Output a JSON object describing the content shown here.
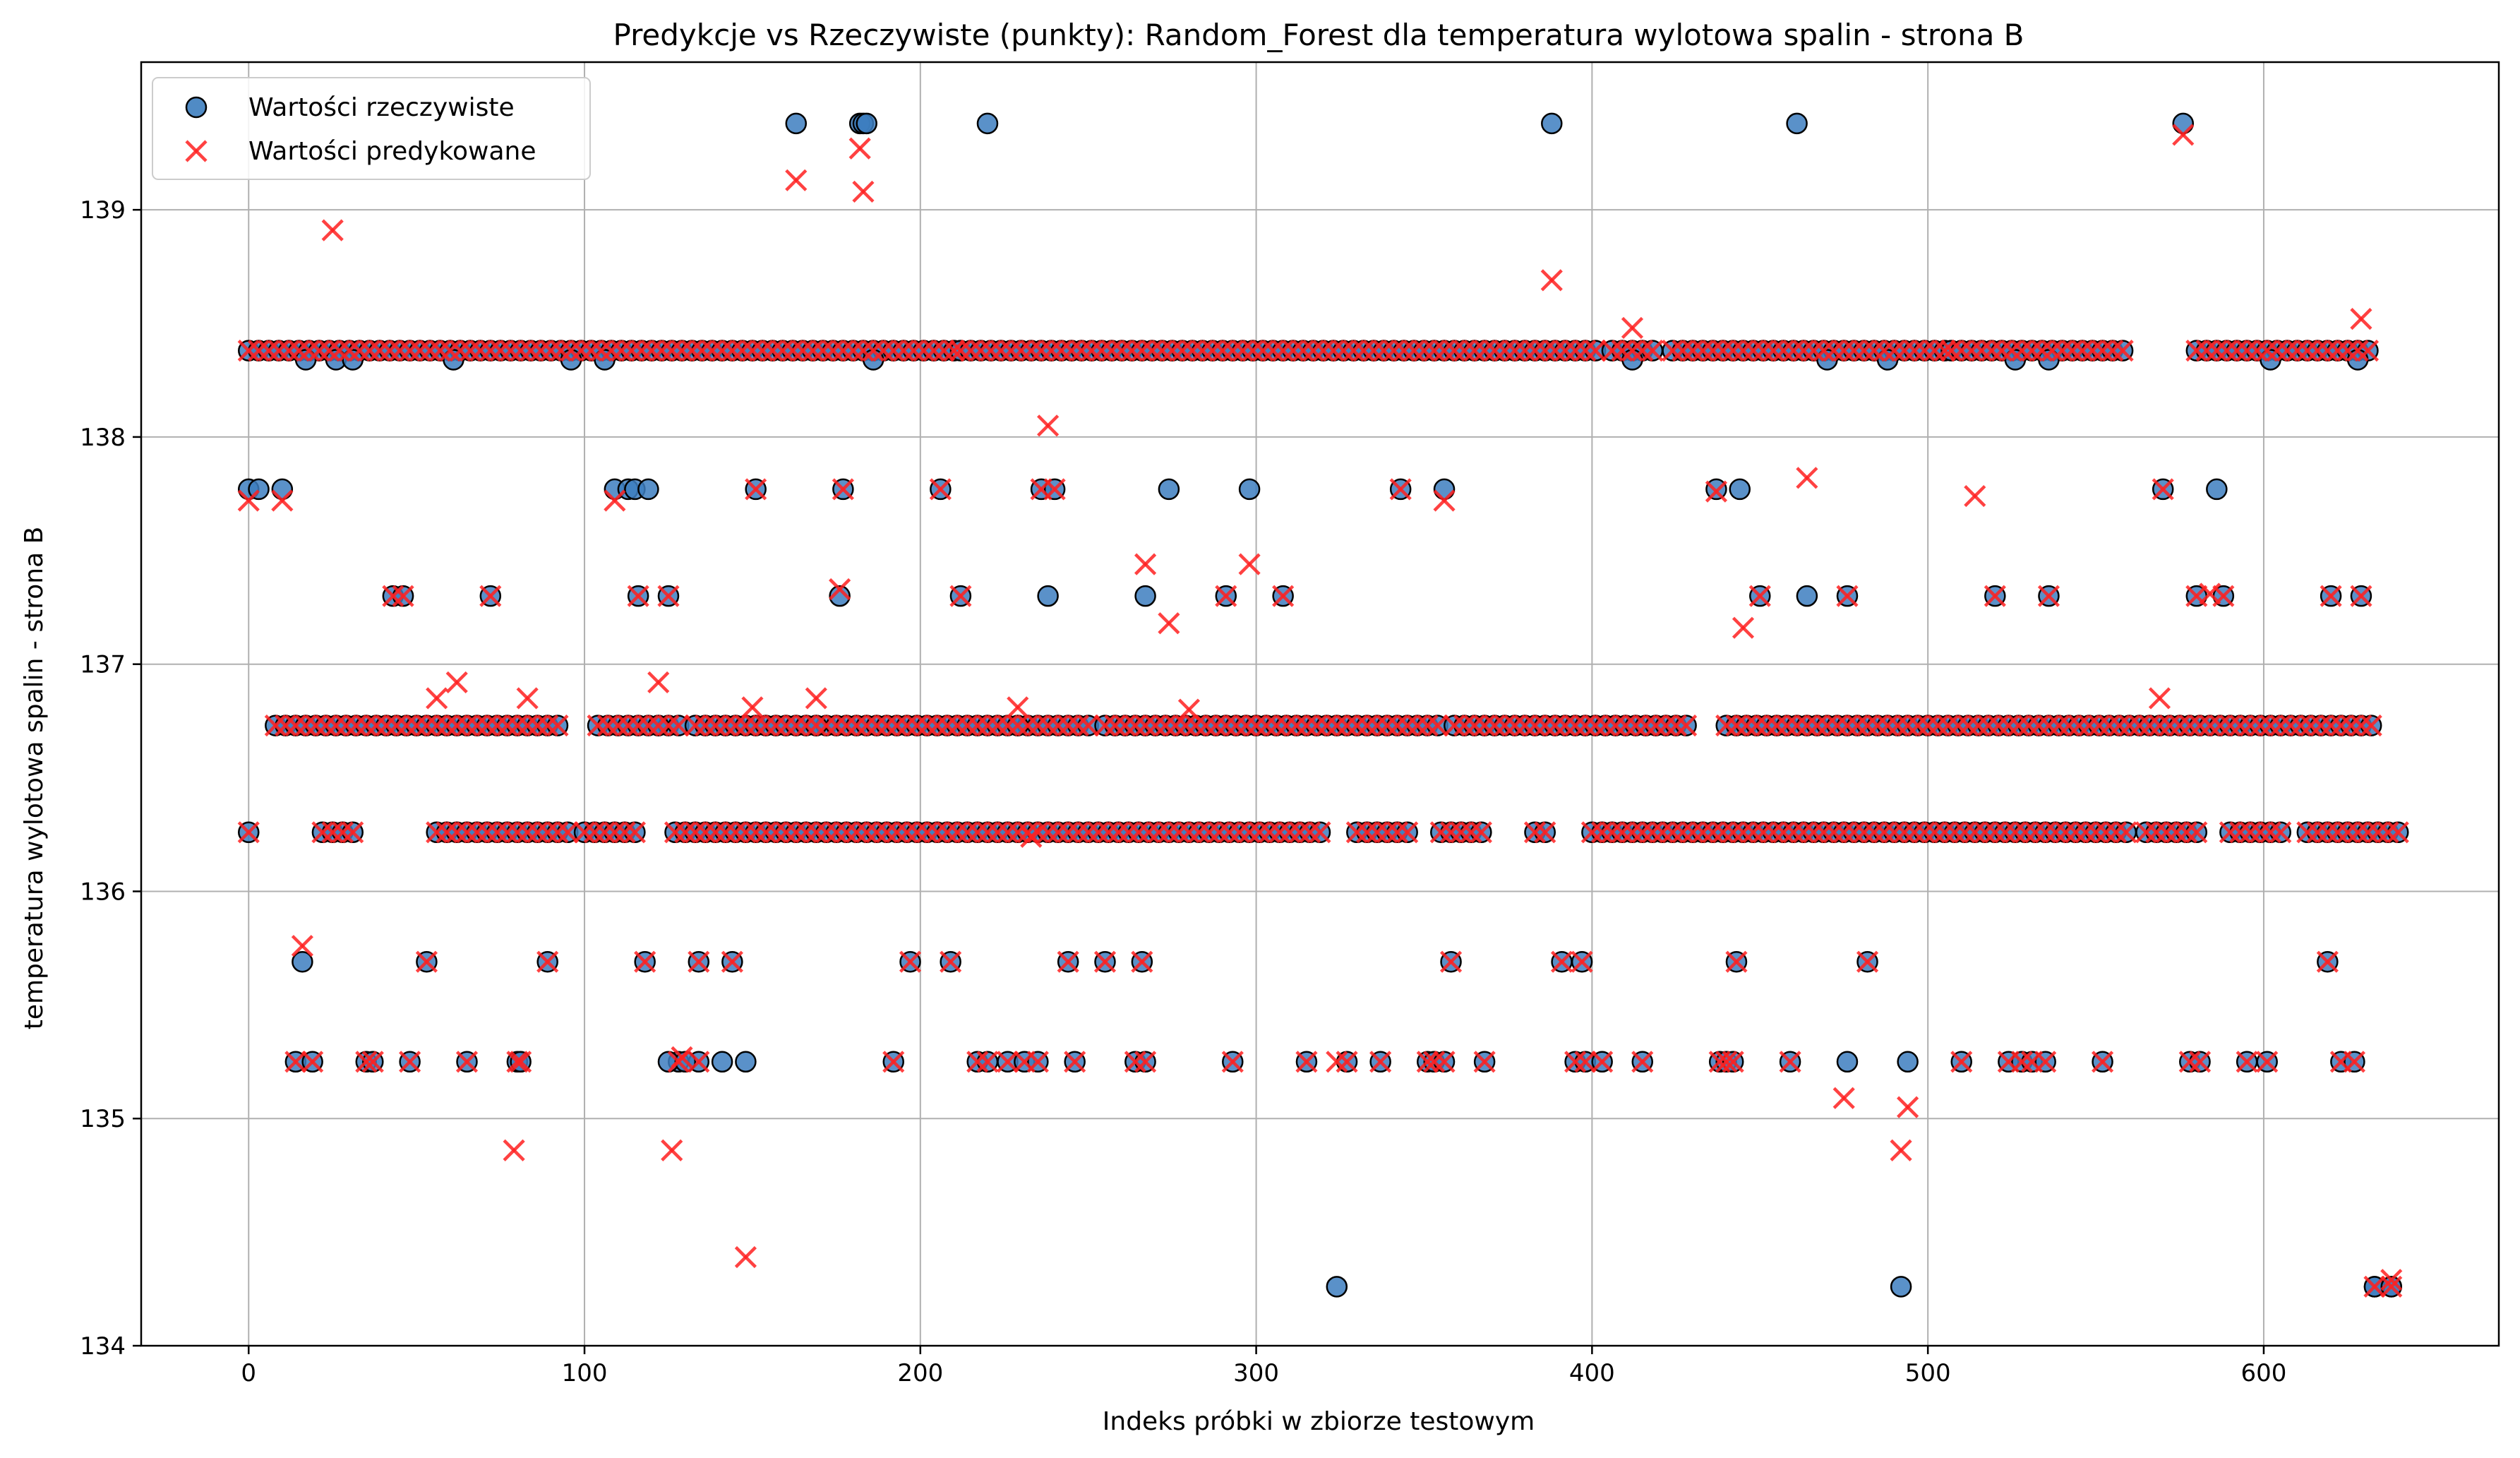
{
  "chart_data": {
    "type": "scatter",
    "title": "Predykcje vs Rzeczywiste (punkty): Random_Forest dla temperatura wylotowa spalin - strona B",
    "xlabel": "Indeks próbki w zbiorze testowym",
    "ylabel": "temperatura wylotowa spalin - strona B",
    "xlim": [
      -32,
      670
    ],
    "ylim": [
      134.0,
      139.65
    ],
    "xticks": [
      0,
      100,
      200,
      300,
      400,
      500,
      600
    ],
    "yticks": [
      134,
      135,
      136,
      137,
      138,
      139
    ],
    "grid": true,
    "legend_position": "top-left",
    "series": [
      {
        "name": "Wartości rzeczywiste",
        "marker": "circle",
        "color": "#3d7ebf",
        "points": [
          [
            0,
            137.77
          ],
          [
            3,
            137.77
          ],
          [
            10,
            137.77
          ],
          [
            16,
            135.69
          ],
          [
            17,
            138.34
          ],
          [
            26,
            138.34
          ],
          [
            31,
            138.34
          ],
          [
            61,
            138.34
          ],
          [
            96,
            138.34
          ],
          [
            106,
            138.34
          ],
          [
            109,
            137.77
          ],
          [
            113,
            137.77
          ],
          [
            115,
            137.77
          ],
          [
            119,
            137.77
          ],
          [
            122,
            136.73
          ],
          [
            125,
            135.25
          ],
          [
            130,
            135.25
          ],
          [
            141,
            135.25
          ],
          [
            148,
            135.25
          ],
          [
            163,
            139.38
          ],
          [
            169,
            136.73
          ],
          [
            176,
            137.3
          ],
          [
            182,
            139.38
          ],
          [
            183,
            139.38
          ],
          [
            184,
            139.38
          ],
          [
            186,
            138.34
          ],
          [
            220,
            139.38
          ],
          [
            229,
            136.73
          ],
          [
            238,
            137.3
          ],
          [
            267,
            137.3
          ],
          [
            274,
            137.77
          ],
          [
            298,
            137.77
          ],
          [
            324,
            134.26
          ],
          [
            356,
            137.77
          ],
          [
            388,
            139.38
          ],
          [
            412,
            138.34
          ],
          [
            437,
            137.77
          ],
          [
            444,
            137.77
          ],
          [
            461,
            139.38
          ],
          [
            464,
            137.3
          ],
          [
            470,
            138.34
          ],
          [
            476,
            135.25
          ],
          [
            488,
            138.34
          ],
          [
            492,
            134.26
          ],
          [
            494,
            135.25
          ],
          [
            526,
            138.34
          ],
          [
            536,
            138.34
          ],
          [
            576,
            139.38
          ],
          [
            586,
            137.77
          ],
          [
            602,
            138.34
          ],
          [
            628,
            138.34
          ],
          [
            633,
            134.26
          ],
          [
            638,
            134.26
          ]
        ]
      },
      {
        "name": "Wartości predykowane",
        "marker": "x",
        "color": "#ff2020",
        "points": [
          [
            0,
            137.72
          ],
          [
            10,
            137.72
          ],
          [
            16,
            135.76
          ],
          [
            25,
            138.91
          ],
          [
            56,
            136.85
          ],
          [
            62,
            136.92
          ],
          [
            79,
            134.86
          ],
          [
            83,
            136.85
          ],
          [
            109,
            137.72
          ],
          [
            122,
            136.92
          ],
          [
            126,
            134.86
          ],
          [
            129,
            135.27
          ],
          [
            148,
            134.39
          ],
          [
            150,
            136.81
          ],
          [
            163,
            139.13
          ],
          [
            169,
            136.85
          ],
          [
            176,
            137.33
          ],
          [
            182,
            139.27
          ],
          [
            183,
            139.08
          ],
          [
            229,
            136.81
          ],
          [
            233,
            136.24
          ],
          [
            238,
            138.05
          ],
          [
            267,
            137.44
          ],
          [
            274,
            137.18
          ],
          [
            280,
            136.8
          ],
          [
            298,
            137.44
          ],
          [
            324,
            135.25
          ],
          [
            356,
            137.72
          ],
          [
            388,
            138.69
          ],
          [
            412,
            138.48
          ],
          [
            437,
            137.76
          ],
          [
            445,
            137.16
          ],
          [
            464,
            137.82
          ],
          [
            475,
            135.09
          ],
          [
            492,
            134.86
          ],
          [
            494,
            135.05
          ],
          [
            514,
            137.74
          ],
          [
            569,
            136.85
          ],
          [
            576,
            139.33
          ],
          [
            584,
            137.31
          ],
          [
            629,
            138.52
          ],
          [
            638,
            134.29
          ]
        ]
      }
    ],
    "bands": [
      {
        "y": 138.38,
        "ranges": [
          [
            0,
            210
          ],
          [
            212,
            402
          ],
          [
            406,
            420
          ],
          [
            424,
            505
          ],
          [
            507,
            560
          ],
          [
            580,
            632
          ]
        ]
      },
      {
        "y": 136.73,
        "ranges": [
          [
            8,
            92
          ],
          [
            104,
            128
          ],
          [
            133,
            250
          ],
          [
            255,
            355
          ],
          [
            359,
            430
          ],
          [
            440,
            634
          ]
        ]
      },
      {
        "y": 136.26,
        "ranges": [
          [
            0,
            2
          ],
          [
            22,
            32
          ],
          [
            56,
            95
          ],
          [
            100,
            117
          ],
          [
            127,
            320
          ],
          [
            330,
            345
          ],
          [
            355,
            368
          ],
          [
            383,
            386
          ],
          [
            400,
            560
          ],
          [
            565,
            582
          ],
          [
            590,
            606
          ],
          [
            613,
            640
          ]
        ]
      }
    ],
    "level_samples": [
      {
        "y": 137.3,
        "x": [
          43,
          46,
          72,
          116,
          125,
          212,
          291,
          308,
          450,
          476,
          520,
          536,
          580,
          588,
          620,
          629
        ]
      },
      {
        "y": 137.77,
        "x": [
          151,
          177,
          206,
          236,
          240,
          343,
          570
        ]
      },
      {
        "y": 135.69,
        "x": [
          53,
          89,
          118,
          134,
          144,
          197,
          209,
          244,
          255,
          266,
          358,
          391,
          397,
          443,
          482,
          619
        ]
      },
      {
        "y": 135.25,
        "x": [
          14,
          19,
          35,
          37,
          48,
          65,
          80,
          81,
          128,
          134,
          192,
          217,
          220,
          226,
          231,
          235,
          246,
          264,
          267,
          293,
          315,
          327,
          337,
          351,
          353,
          356,
          368,
          395,
          398,
          403,
          415,
          438,
          440,
          442,
          459,
          510,
          524,
          528,
          531,
          535,
          552,
          578,
          581,
          595,
          601,
          623,
          627
        ]
      },
      {
        "y": 134.26,
        "x": [
          633,
          638
        ]
      }
    ]
  },
  "legend": {
    "actual_label": "Wartości rzeczywiste",
    "predicted_label": "Wartości predykowane"
  }
}
